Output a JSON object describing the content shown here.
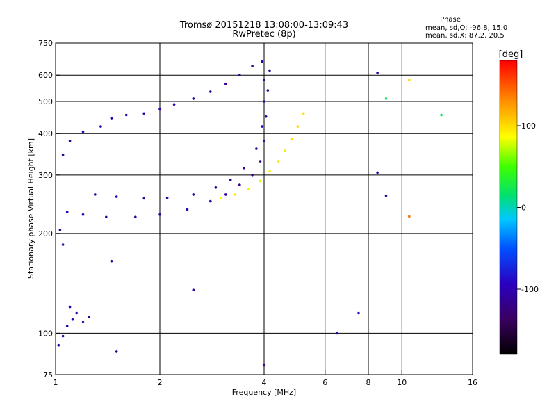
{
  "chart_data": {
    "type": "scatter",
    "title": "Tromsø 20151218 13:08:00-13:09:43",
    "subtitle": "RwPretec (8p)",
    "xlabel": "Frequency [MHz]",
    "ylabel": "Stationary phase Virtual Height [km]",
    "x_scale": "log",
    "y_scale": "log",
    "xlim": [
      1,
      16
    ],
    "ylim": [
      75,
      750
    ],
    "x_ticks": [
      "1",
      "2",
      "4",
      "6",
      "8",
      "10",
      "16"
    ],
    "y_ticks": [
      "75",
      "100",
      "200",
      "300",
      "400",
      "500",
      "600",
      "750"
    ],
    "grid": true,
    "stats": {
      "heading": "Phase",
      "line1": "mean, sd,O: -96.8, 15.0",
      "line2": "mean, sd,X:  87.2, 20.5"
    },
    "colorbar": {
      "label": "[deg]",
      "range": [
        -180,
        180
      ],
      "ticks": [
        "100",
        "0",
        "-100"
      ],
      "colormap": "rainbow: black-purple-blue-cyan-green-yellow-orange-red"
    },
    "series": [
      {
        "values": [
          {
            "x": 1.05,
            "y": 345,
            "p": -110
          },
          {
            "x": 1.1,
            "y": 380,
            "p": -105
          },
          {
            "x": 1.2,
            "y": 405,
            "p": -100
          },
          {
            "x": 1.35,
            "y": 420,
            "p": -100
          },
          {
            "x": 1.45,
            "y": 445,
            "p": -100
          },
          {
            "x": 1.6,
            "y": 455,
            "p": -100
          },
          {
            "x": 1.8,
            "y": 460,
            "p": -100
          },
          {
            "x": 2.0,
            "y": 475,
            "p": -100
          },
          {
            "x": 2.2,
            "y": 490,
            "p": -105
          },
          {
            "x": 2.5,
            "y": 510,
            "p": -105
          },
          {
            "x": 2.8,
            "y": 535,
            "p": -110
          },
          {
            "x": 3.1,
            "y": 565,
            "p": -110
          },
          {
            "x": 3.4,
            "y": 600,
            "p": -115
          },
          {
            "x": 3.7,
            "y": 640,
            "p": -110
          },
          {
            "x": 3.95,
            "y": 660,
            "p": -110
          }
        ]
      },
      {
        "values": [
          {
            "x": 1.08,
            "y": 232,
            "p": -100
          },
          {
            "x": 1.2,
            "y": 228,
            "p": -100
          },
          {
            "x": 1.4,
            "y": 224,
            "p": -110
          },
          {
            "x": 1.7,
            "y": 224,
            "p": -110
          },
          {
            "x": 2.0,
            "y": 228,
            "p": -105
          },
          {
            "x": 2.4,
            "y": 236,
            "p": -105
          },
          {
            "x": 2.8,
            "y": 250,
            "p": -110
          },
          {
            "x": 3.1,
            "y": 262,
            "p": -110
          },
          {
            "x": 3.4,
            "y": 280,
            "p": -120
          },
          {
            "x": 3.7,
            "y": 300,
            "p": -120
          },
          {
            "x": 3.9,
            "y": 330,
            "p": -115
          },
          {
            "x": 4.0,
            "y": 380,
            "p": -110
          },
          {
            "x": 4.05,
            "y": 450,
            "p": -110
          },
          {
            "x": 4.1,
            "y": 540,
            "p": -110
          },
          {
            "x": 4.15,
            "y": 620,
            "p": -110
          }
        ]
      },
      {
        "values": [
          {
            "x": 1.3,
            "y": 262,
            "p": -100
          },
          {
            "x": 1.5,
            "y": 258,
            "p": -100
          },
          {
            "x": 1.8,
            "y": 255,
            "p": -105
          },
          {
            "x": 2.1,
            "y": 256,
            "p": -105
          },
          {
            "x": 2.5,
            "y": 262,
            "p": -110
          },
          {
            "x": 2.9,
            "y": 275,
            "p": -110
          },
          {
            "x": 3.2,
            "y": 290,
            "p": -115
          },
          {
            "x": 3.5,
            "y": 315,
            "p": -115
          },
          {
            "x": 3.8,
            "y": 360,
            "p": -110
          },
          {
            "x": 3.95,
            "y": 420,
            "p": -110
          },
          {
            "x": 4.0,
            "y": 500,
            "p": -110
          },
          {
            "x": 4.0,
            "y": 580,
            "p": -110
          }
        ]
      },
      {
        "values": [
          {
            "x": 3.0,
            "y": 255,
            "p": 90
          },
          {
            "x": 3.3,
            "y": 262,
            "p": 95
          },
          {
            "x": 3.6,
            "y": 272,
            "p": 90
          },
          {
            "x": 3.9,
            "y": 288,
            "p": 80
          },
          {
            "x": 4.15,
            "y": 308,
            "p": 90
          },
          {
            "x": 4.4,
            "y": 330,
            "p": 95
          },
          {
            "x": 4.6,
            "y": 355,
            "p": 95
          },
          {
            "x": 4.8,
            "y": 385,
            "p": 100
          },
          {
            "x": 5.0,
            "y": 420,
            "p": 100
          },
          {
            "x": 5.2,
            "y": 460,
            "p": 100
          }
        ]
      },
      {
        "values": [
          {
            "x": 1.02,
            "y": 92,
            "p": -110
          },
          {
            "x": 1.05,
            "y": 98,
            "p": -100
          },
          {
            "x": 1.08,
            "y": 105,
            "p": -110
          },
          {
            "x": 1.12,
            "y": 110,
            "p": -100
          },
          {
            "x": 1.15,
            "y": 115,
            "p": -110
          },
          {
            "x": 1.2,
            "y": 108,
            "p": -100
          },
          {
            "x": 1.25,
            "y": 112,
            "p": -110
          },
          {
            "x": 1.1,
            "y": 120,
            "p": -100
          }
        ]
      },
      {
        "values": [
          {
            "x": 1.03,
            "y": 205,
            "p": -110
          },
          {
            "x": 1.05,
            "y": 185,
            "p": -100
          },
          {
            "x": 1.5,
            "y": 88,
            "p": -110
          },
          {
            "x": 1.45,
            "y": 165,
            "p": -100
          },
          {
            "x": 2.5,
            "y": 135,
            "p": -110
          },
          {
            "x": 4.0,
            "y": 80,
            "p": -120
          },
          {
            "x": 6.5,
            "y": 100,
            "p": -110
          },
          {
            "x": 7.5,
            "y": 115,
            "p": -100
          },
          {
            "x": 8.5,
            "y": 610,
            "p": -110
          },
          {
            "x": 8.5,
            "y": 305,
            "p": -100
          },
          {
            "x": 9.0,
            "y": 260,
            "p": -110
          },
          {
            "x": 10.5,
            "y": 580,
            "p": 100
          },
          {
            "x": 10.5,
            "y": 225,
            "p": 140
          },
          {
            "x": 13.0,
            "y": 455,
            "p": 20
          },
          {
            "x": 9.0,
            "y": 510,
            "p": 20
          }
        ]
      }
    ]
  }
}
